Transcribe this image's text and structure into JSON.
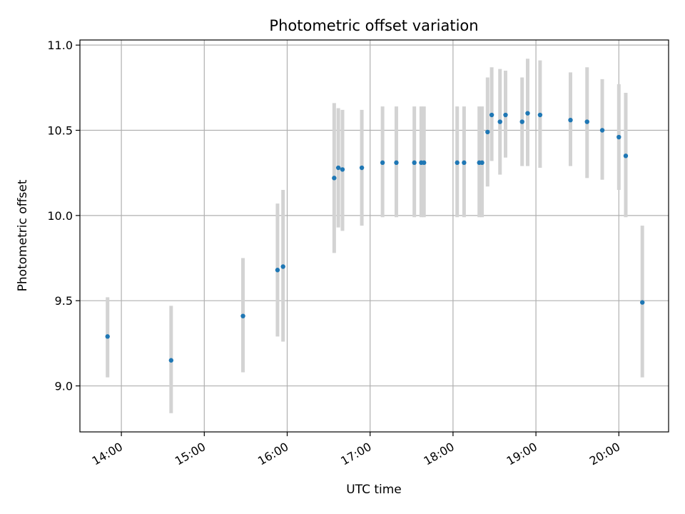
{
  "chart_data": {
    "type": "scatter",
    "title": "Photometric offset variation",
    "xlabel": "UTC time",
    "ylabel": "Photometric offset",
    "x_axis_kind": "time",
    "xlim": [
      "13:30",
      "20:36"
    ],
    "ylim": [
      8.73,
      11.03
    ],
    "x_ticks": [
      "14:00",
      "15:00",
      "16:00",
      "17:00",
      "18:00",
      "19:00",
      "20:00"
    ],
    "y_ticks": [
      "9.0",
      "9.5",
      "10.0",
      "10.5",
      "11.0"
    ],
    "y_tick_values": [
      9.0,
      9.5,
      10.0,
      10.5,
      11.0
    ],
    "grid": true,
    "point_color": "#1f77b4",
    "errorbar_color": "#d3d3d3",
    "points": [
      {
        "t": "13:50",
        "y": 9.29,
        "ylow": 9.05,
        "yhigh": 9.52
      },
      {
        "t": "14:36",
        "y": 9.15,
        "ylow": 8.84,
        "yhigh": 9.47
      },
      {
        "t": "15:28",
        "y": 9.41,
        "ylow": 9.08,
        "yhigh": 9.75
      },
      {
        "t": "15:53",
        "y": 9.68,
        "ylow": 9.29,
        "yhigh": 10.07
      },
      {
        "t": "15:57",
        "y": 9.7,
        "ylow": 9.26,
        "yhigh": 10.15
      },
      {
        "t": "16:34",
        "y": 10.22,
        "ylow": 9.78,
        "yhigh": 10.66
      },
      {
        "t": "16:37",
        "y": 10.28,
        "ylow": 9.93,
        "yhigh": 10.63
      },
      {
        "t": "16:40",
        "y": 10.27,
        "ylow": 9.91,
        "yhigh": 10.62
      },
      {
        "t": "16:54",
        "y": 10.28,
        "ylow": 9.94,
        "yhigh": 10.62
      },
      {
        "t": "17:09",
        "y": 10.31,
        "ylow": 9.99,
        "yhigh": 10.64
      },
      {
        "t": "17:19",
        "y": 10.31,
        "ylow": 9.99,
        "yhigh": 10.64
      },
      {
        "t": "17:32",
        "y": 10.31,
        "ylow": 9.99,
        "yhigh": 10.64
      },
      {
        "t": "17:37",
        "y": 10.31,
        "ylow": 9.99,
        "yhigh": 10.64
      },
      {
        "t": "17:39",
        "y": 10.31,
        "ylow": 9.99,
        "yhigh": 10.64
      },
      {
        "t": "18:03",
        "y": 10.31,
        "ylow": 9.99,
        "yhigh": 10.64
      },
      {
        "t": "18:08",
        "y": 10.31,
        "ylow": 9.99,
        "yhigh": 10.64
      },
      {
        "t": "18:19",
        "y": 10.31,
        "ylow": 9.99,
        "yhigh": 10.64
      },
      {
        "t": "18:21",
        "y": 10.31,
        "ylow": 9.99,
        "yhigh": 10.64
      },
      {
        "t": "18:25",
        "y": 10.49,
        "ylow": 10.17,
        "yhigh": 10.81
      },
      {
        "t": "18:28",
        "y": 10.59,
        "ylow": 10.32,
        "yhigh": 10.87
      },
      {
        "t": "18:34",
        "y": 10.55,
        "ylow": 10.24,
        "yhigh": 10.86
      },
      {
        "t": "18:38",
        "y": 10.59,
        "ylow": 10.34,
        "yhigh": 10.85
      },
      {
        "t": "18:50",
        "y": 10.55,
        "ylow": 10.29,
        "yhigh": 10.81
      },
      {
        "t": "18:54",
        "y": 10.6,
        "ylow": 10.29,
        "yhigh": 10.92
      },
      {
        "t": "19:03",
        "y": 10.59,
        "ylow": 10.28,
        "yhigh": 10.91
      },
      {
        "t": "19:25",
        "y": 10.56,
        "ylow": 10.29,
        "yhigh": 10.84
      },
      {
        "t": "19:37",
        "y": 10.55,
        "ylow": 10.22,
        "yhigh": 10.87
      },
      {
        "t": "19:48",
        "y": 10.5,
        "ylow": 10.21,
        "yhigh": 10.8
      },
      {
        "t": "20:00",
        "y": 10.46,
        "ylow": 10.15,
        "yhigh": 10.77
      },
      {
        "t": "20:05",
        "y": 10.35,
        "ylow": 9.99,
        "yhigh": 10.72
      },
      {
        "t": "20:17",
        "y": 9.49,
        "ylow": 9.05,
        "yhigh": 9.94
      }
    ]
  }
}
